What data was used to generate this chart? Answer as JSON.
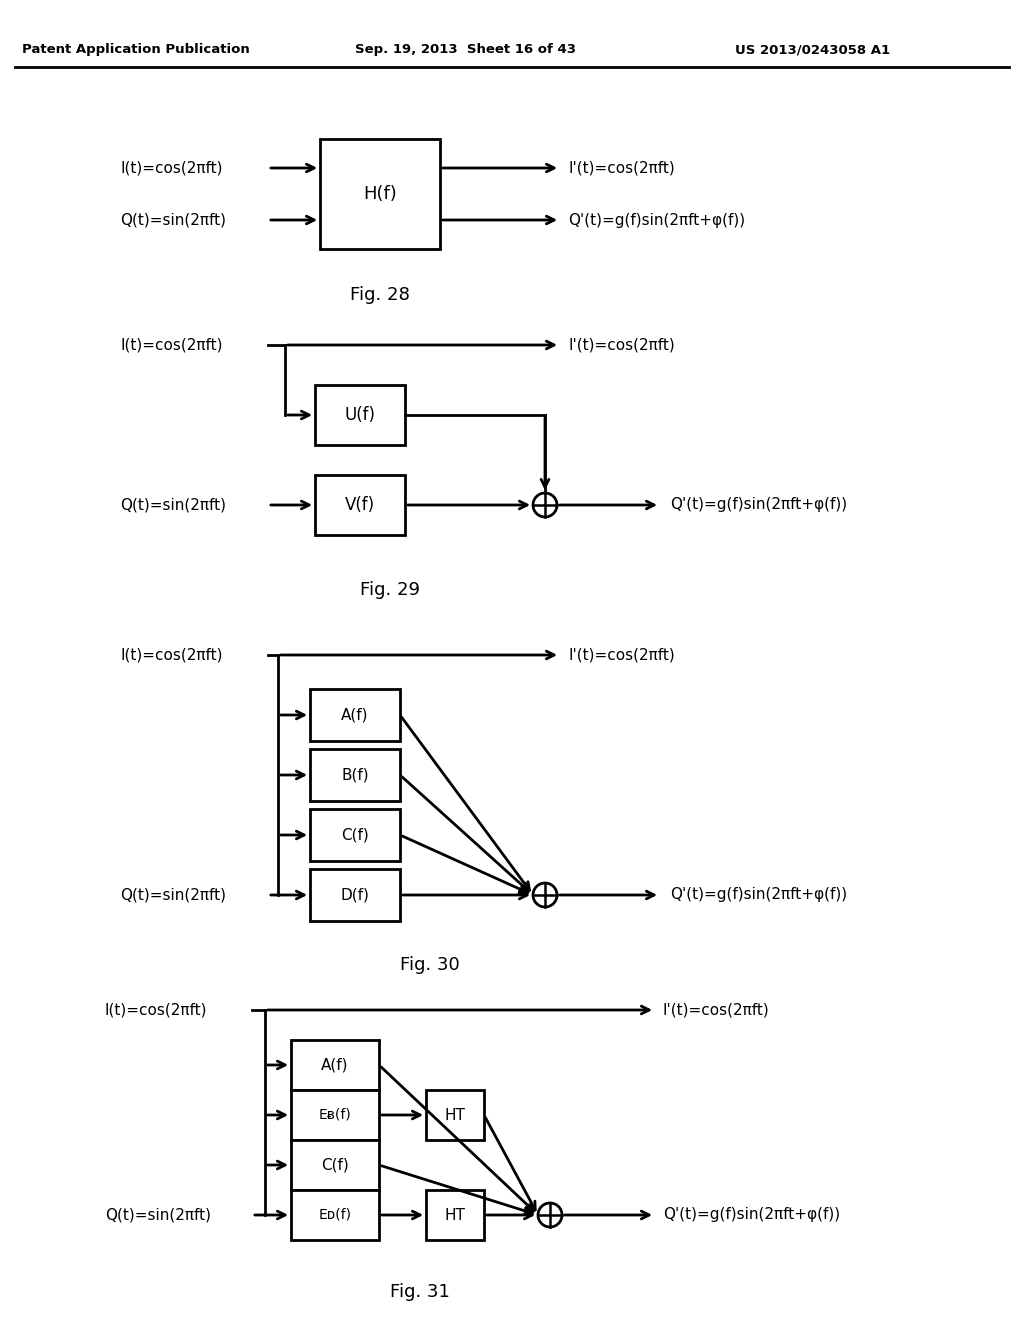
{
  "header_left": "Patent Application Publication",
  "header_mid": "Sep. 19, 2013  Sheet 16 of 43",
  "header_right": "US 2013/0243058 A1",
  "I_in": "I(t)=cos(2πft)",
  "Q_in": "Q(t)=sin(2πft)",
  "I_out": "I'(t)=cos(2πft)",
  "Q_out": "Q'(t)=g(f)sin(2πft+φ(f))",
  "fig28_caption": "Fig. 28",
  "fig29_caption": "Fig. 29",
  "fig30_caption": "Fig. 30",
  "fig31_caption": "Fig. 31"
}
